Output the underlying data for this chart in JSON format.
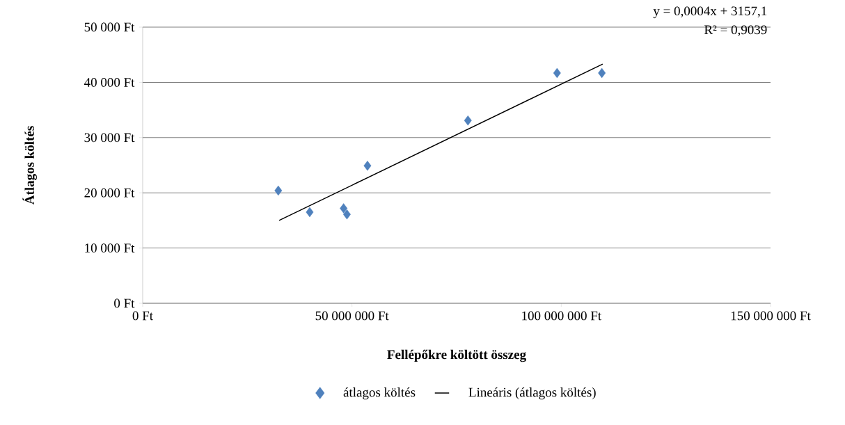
{
  "chart_data": {
    "type": "scatter",
    "xlabel": "Fellépőkre költött összeg",
    "ylabel": "Átlagos költés",
    "xlim": [
      0,
      150000000
    ],
    "ylim": [
      0,
      50000
    ],
    "xticks": [
      {
        "value": 0,
        "label": "0 Ft"
      },
      {
        "value": 50000000,
        "label": "50 000 000 Ft"
      },
      {
        "value": 100000000,
        "label": "100 000 000 Ft"
      },
      {
        "value": 150000000,
        "label": "150 000 000 Ft"
      }
    ],
    "yticks": [
      {
        "value": 0,
        "label": "0 Ft"
      },
      {
        "value": 10000,
        "label": "10 000 Ft"
      },
      {
        "value": 20000,
        "label": "20 000 Ft"
      },
      {
        "value": 30000,
        "label": "30 000 Ft"
      },
      {
        "value": 40000,
        "label": "40 000 Ft"
      },
      {
        "value": 50000,
        "label": "50 000 Ft"
      }
    ],
    "grid": "y",
    "legend": "bottom",
    "series": [
      {
        "name": "átlagos költés",
        "marker": "diamond",
        "color": "#4f81bd",
        "x": [
          32400000,
          39900000,
          48000000,
          48800000,
          53700000,
          77700000,
          99000000,
          109700000
        ],
        "values": [
          20400,
          16500,
          17200,
          16100,
          24900,
          33100,
          41700,
          41700
        ]
      },
      {
        "name": "Lineáris (átlagos költés)",
        "type": "line",
        "marker": "none",
        "color": "#000000",
        "x": [
          32600000,
          109900000
        ],
        "values": [
          15000,
          43300
        ]
      }
    ],
    "annotations": [
      "y = 0,0004x + 3157,1",
      "R² = 0,9039"
    ]
  }
}
